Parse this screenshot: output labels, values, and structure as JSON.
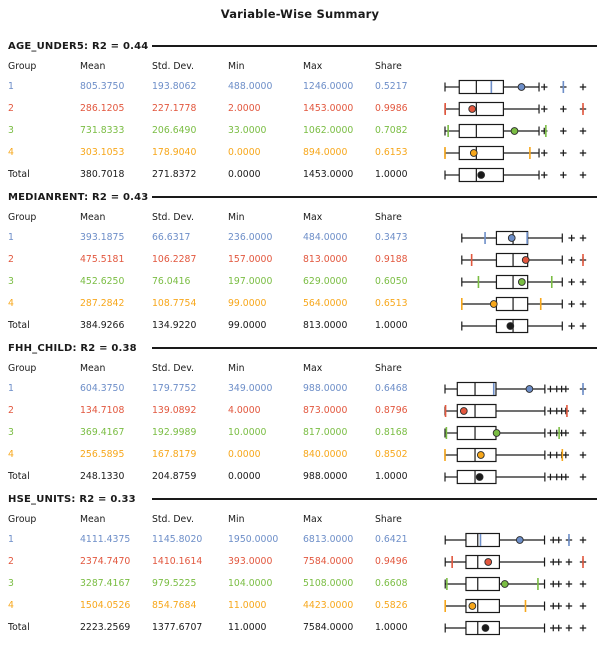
{
  "chart_data": {
    "type": "table",
    "title": "Variable-Wise Summary",
    "columns": [
      "Group",
      "Mean",
      "Std. Dev.",
      "Min",
      "Max",
      "Share"
    ],
    "group_colors": {
      "1": "#6D8EC8",
      "2": "#E2573E",
      "3": "#7ABD43",
      "4": "#F7A71B",
      "Total": "#1a1a1a"
    },
    "sections": [
      {
        "heading": "AGE_UNDER5: R2 = 0.44",
        "rows": [
          {
            "group": "1",
            "mean": "805.3750",
            "std_dev": "193.8062",
            "min": "488.0000",
            "max": "1246.0000",
            "share": "0.5217"
          },
          {
            "group": "2",
            "mean": "286.1205",
            "std_dev": "227.1778",
            "min": "2.0000",
            "max": "1453.0000",
            "share": "0.9986"
          },
          {
            "group": "3",
            "mean": "731.8333",
            "std_dev": "206.6490",
            "min": "33.0000",
            "max": "1062.0000",
            "share": "0.7082"
          },
          {
            "group": "4",
            "mean": "303.1053",
            "std_dev": "178.9040",
            "min": "0.0000",
            "max": "894.0000",
            "share": "0.6153"
          },
          {
            "group": "Total",
            "mean": "380.7018",
            "std_dev": "271.8372",
            "min": "0.0000",
            "max": "1453.0000",
            "share": "1.0000"
          }
        ],
        "boxplot": {
          "axis_max": 1453,
          "whisker_low": 0,
          "q1": 150,
          "median": 330,
          "q3": 615,
          "whisker_high": 990,
          "outliers": [
            1045,
            1246,
            1453
          ]
        }
      },
      {
        "heading": "MEDIANRENT: R2 = 0.43",
        "rows": [
          {
            "group": "1",
            "mean": "393.1875",
            "std_dev": "66.6317",
            "min": "236.0000",
            "max": "484.0000",
            "share": "0.3473"
          },
          {
            "group": "2",
            "mean": "475.5181",
            "std_dev": "106.2287",
            "min": "157.0000",
            "max": "813.0000",
            "share": "0.9188"
          },
          {
            "group": "3",
            "mean": "452.6250",
            "std_dev": "76.0416",
            "min": "197.0000",
            "max": "629.0000",
            "share": "0.6050"
          },
          {
            "group": "4",
            "mean": "287.2842",
            "std_dev": "108.7754",
            "min": "99.0000",
            "max": "564.0000",
            "share": "0.6513"
          },
          {
            "group": "Total",
            "mean": "384.9266",
            "std_dev": "134.9220",
            "min": "99.0000",
            "max": "813.0000",
            "share": "1.0000"
          }
        ],
        "boxplot": {
          "axis_max": 813,
          "whisker_low": 99,
          "q1": 303,
          "median": 401,
          "q3": 487,
          "whisker_high": 691,
          "outliers": [
            746,
            813
          ]
        }
      },
      {
        "heading": "FHH_CHILD: R2 = 0.38",
        "rows": [
          {
            "group": "1",
            "mean": "604.3750",
            "std_dev": "179.7752",
            "min": "349.0000",
            "max": "988.0000",
            "share": "0.6468"
          },
          {
            "group": "2",
            "mean": "134.7108",
            "std_dev": "139.0892",
            "min": "4.0000",
            "max": "873.0000",
            "share": "0.8796"
          },
          {
            "group": "3",
            "mean": "369.4167",
            "std_dev": "192.9989",
            "min": "10.0000",
            "max": "817.0000",
            "share": "0.8168"
          },
          {
            "group": "4",
            "mean": "256.5895",
            "std_dev": "167.8179",
            "min": "0.0000",
            "max": "840.0000",
            "share": "0.8502"
          },
          {
            "group": "Total",
            "mean": "248.1330",
            "std_dev": "204.8759",
            "min": "0.0000",
            "max": "988.0000",
            "share": "1.0000"
          }
        ],
        "boxplot": {
          "axis_max": 988,
          "whisker_low": 0,
          "q1": 88,
          "median": 215,
          "q3": 365,
          "whisker_high": 715,
          "outliers": [
            755,
            800,
            835,
            865,
            988
          ]
        }
      },
      {
        "heading": "HSE_UNITS: R2 = 0.33",
        "rows": [
          {
            "group": "1",
            "mean": "4111.4375",
            "std_dev": "1145.8020",
            "min": "1950.0000",
            "max": "6813.0000",
            "share": "0.6421"
          },
          {
            "group": "2",
            "mean": "2374.7470",
            "std_dev": "1410.1614",
            "min": "393.0000",
            "max": "7584.0000",
            "share": "0.9496"
          },
          {
            "group": "3",
            "mean": "3287.4167",
            "std_dev": "979.5225",
            "min": "104.0000",
            "max": "5108.0000",
            "share": "0.6608"
          },
          {
            "group": "4",
            "mean": "1504.0526",
            "std_dev": "854.7684",
            "min": "11.0000",
            "max": "4423.0000",
            "share": "0.5826"
          },
          {
            "group": "Total",
            "mean": "2223.2569",
            "std_dev": "1377.6707",
            "min": "11.0000",
            "max": "7584.0000",
            "share": "1.0000"
          }
        ],
        "boxplot": {
          "axis_max": 7584,
          "whisker_low": 11,
          "q1": 1152,
          "median": 1800,
          "q3": 2990,
          "whisker_high": 5470,
          "outliers": [
            5950,
            6250,
            6813,
            7584
          ]
        }
      }
    ]
  }
}
